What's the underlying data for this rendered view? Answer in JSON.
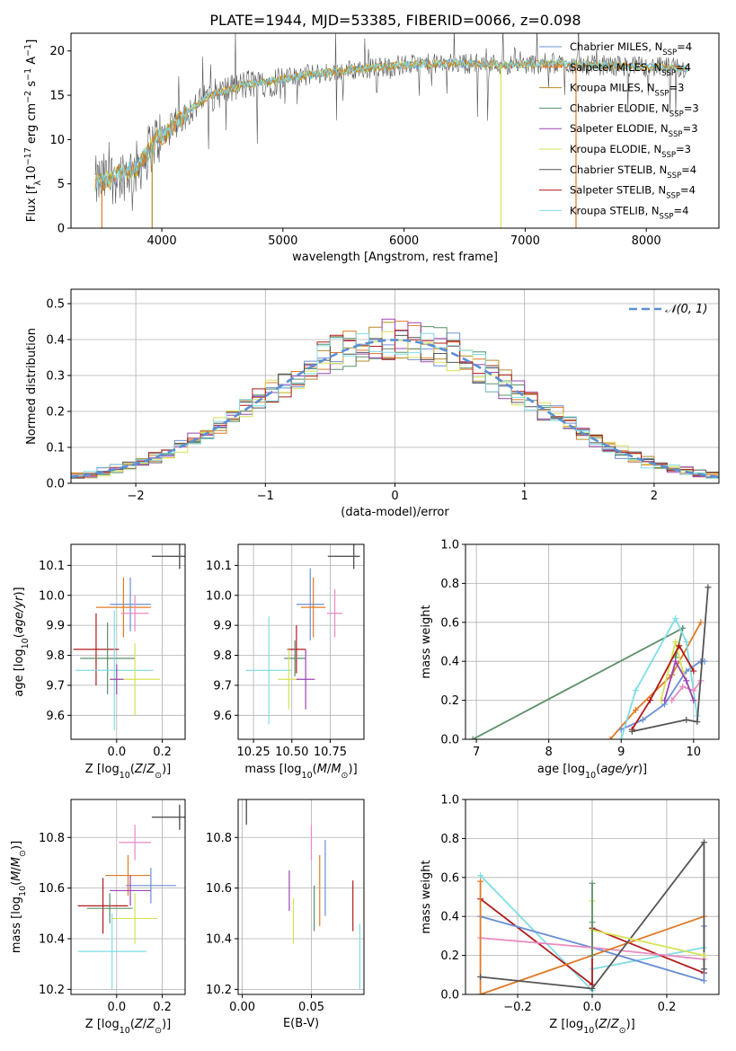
{
  "figure": {
    "title": "PLATE=1944, MJD=53385, FIBERID=0066, z=0.098"
  },
  "colors": {
    "chabrier_miles": "#6a8fd6",
    "salpeter_miles": "#e07a26",
    "kroupa_miles": "#b58a28",
    "chabrier_elodie": "#5c8f6a",
    "salpeter_elodie": "#9b45b4",
    "kroupa_elodie": "#d6e255",
    "chabrier_stelib": "#555555",
    "salpeter_stelib": "#b01a1a",
    "kroupa_stelib": "#7fdde4",
    "pink": "#e889c0",
    "gauss": "#5a8fd6"
  },
  "chart_data": [
    {
      "id": "spectrum",
      "type": "line",
      "xlabel": "wavelength [Angstrom, rest frame]",
      "ylabel": "Flux [f_λ 10^-17 erg cm^-2 s^-1 A^-1]",
      "xlim": [
        3250,
        8600
      ],
      "ylim": [
        0,
        22
      ],
      "xticks": [
        4000,
        5000,
        6000,
        7000,
        8000
      ],
      "yticks": [
        0,
        5,
        10,
        15,
        20
      ],
      "legend_position": "right",
      "series": [
        {
          "name": "Chabrier MILES, N_SSP=4",
          "label_main": "Chabrier MILES, N",
          "label_sub": "SSP",
          "label_tail": "=4",
          "color_key": "chabrier_miles"
        },
        {
          "name": "Salpeter MILES, N_SSP=4",
          "label_main": "Salpeter MILES, N",
          "label_sub": "SSP",
          "label_tail": "=4",
          "color_key": "salpeter_miles"
        },
        {
          "name": "Kroupa MILES, N_SSP=3",
          "label_main": "Kroupa MILES, N",
          "label_sub": "SSP",
          "label_tail": "=3",
          "color_key": "kroupa_miles"
        },
        {
          "name": "Chabrier ELODIE, N_SSP=3",
          "label_main": "Chabrier ELODIE, N",
          "label_sub": "SSP",
          "label_tail": "=3",
          "color_key": "chabrier_elodie"
        },
        {
          "name": "Salpeter ELODIE, N_SSP=3",
          "label_main": "Salpeter ELODIE, N",
          "label_sub": "SSP",
          "label_tail": "=3",
          "color_key": "salpeter_elodie"
        },
        {
          "name": "Kroupa ELODIE, N_SSP=3",
          "label_main": "Kroupa ELODIE, N",
          "label_sub": "SSP",
          "label_tail": "=3",
          "color_key": "kroupa_elodie"
        },
        {
          "name": "Chabrier STELIB, N_SSP=4",
          "label_main": "Chabrier STELIB, N",
          "label_sub": "SSP",
          "label_tail": "=4",
          "color_key": "chabrier_stelib"
        },
        {
          "name": "Salpeter STELIB, N_SSP=4",
          "label_main": "Salpeter STELIB, N",
          "label_sub": "SSP",
          "label_tail": "=4",
          "color_key": "salpeter_stelib"
        },
        {
          "name": "Kroupa STELIB, N_SSP=4",
          "label_main": "Kroupa STELIB, N",
          "label_sub": "SSP",
          "label_tail": "=4",
          "color_key": "kroupa_stelib"
        }
      ],
      "continuum": {
        "wavelength": [
          3450,
          3600,
          3800,
          3950,
          4050,
          4200,
          4400,
          4700,
          5000,
          5200,
          5400,
          5600,
          5800,
          6000,
          6200,
          6400,
          6600,
          6800,
          7000,
          7200,
          7400,
          7600,
          7800,
          8000,
          8200,
          8350
        ],
        "flux": [
          5.0,
          5.8,
          6.8,
          10.0,
          10.8,
          13.0,
          15.0,
          16.2,
          16.8,
          17.3,
          17.6,
          17.9,
          18.2,
          18.4,
          18.5,
          18.6,
          18.6,
          18.5,
          18.5,
          18.6,
          18.5,
          18.4,
          18.3,
          18.2,
          18.1,
          18.0
        ]
      },
      "drop_lines": [
        {
          "wavelength": 3505,
          "color_key": "salpeter_miles"
        },
        {
          "wavelength": 3920,
          "color_key": "kroupa_miles"
        },
        {
          "wavelength": 6800,
          "color_key": "kroupa_elodie"
        },
        {
          "wavelength": 7420,
          "color_key": "salpeter_miles"
        }
      ]
    },
    {
      "id": "residuals",
      "type": "line",
      "xlabel": "(data-model)/error",
      "ylabel": "Normed distribution",
      "xlim": [
        -2.5,
        2.5
      ],
      "ylim": [
        0,
        0.54
      ],
      "xticks": [
        -2,
        -1,
        0,
        1,
        2
      ],
      "yticks": [
        0.0,
        0.1,
        0.2,
        0.3,
        0.4,
        0.5
      ],
      "legend": "𝒩(0, 1)",
      "legend_position": "top-right"
    },
    {
      "id": "age_vs_Z",
      "type": "scatter",
      "xlabel": "Z [log10(Z/Z⊙)]",
      "ylabel": "age [log10(age/yr)]",
      "xlim": [
        -0.2,
        0.3
      ],
      "ylim": [
        9.52,
        10.17
      ],
      "xticks": [
        0.0,
        0.2
      ],
      "yticks": [
        9.6,
        9.7,
        9.8,
        9.9,
        10.0,
        10.1
      ],
      "points": [
        {
          "x": 0.06,
          "y": 9.97,
          "xerr": 0.09,
          "yerr": 0.09,
          "color_key": "chabrier_miles"
        },
        {
          "x": 0.03,
          "y": 9.96,
          "xerr": 0.12,
          "yerr": 0.1,
          "color_key": "salpeter_miles"
        },
        {
          "x": 0.08,
          "y": 9.94,
          "xerr": 0.06,
          "yerr": 0.06,
          "color_key": "pink"
        },
        {
          "x": -0.09,
          "y": 9.82,
          "xerr": 0.1,
          "yerr": 0.12,
          "color_key": "salpeter_stelib"
        },
        {
          "x": -0.04,
          "y": 9.79,
          "xerr": 0.12,
          "yerr": 0.12,
          "color_key": "chabrier_elodie"
        },
        {
          "x": -0.01,
          "y": 9.75,
          "xerr": 0.17,
          "yerr": 0.2,
          "color_key": "kroupa_stelib"
        },
        {
          "x": 0.08,
          "y": 9.72,
          "xerr": 0.11,
          "yerr": 0.12,
          "color_key": "kroupa_elodie"
        },
        {
          "x": 0.0,
          "y": 9.72,
          "xerr": 0.03,
          "yerr": 0.05,
          "color_key": "salpeter_elodie"
        },
        {
          "x": 0.26,
          "y": 10.13,
          "xerr": 0.0,
          "yerr": 0.0,
          "color_key": "chabrier_stelib"
        }
      ],
      "ref_error": {
        "x": 0.26,
        "y": 10.13,
        "xerr": 0.035,
        "yerr": 0.045
      }
    },
    {
      "id": "age_vs_mass",
      "type": "scatter",
      "xlabel": "mass [log10(M/M⊙)]",
      "ylabel": "",
      "xlim": [
        10.15,
        10.97
      ],
      "ylim": [
        9.52,
        10.17
      ],
      "xticks": [
        10.25,
        10.5,
        10.75
      ],
      "yticks": [
        9.6,
        9.7,
        9.8,
        9.9,
        10.0,
        10.1
      ],
      "points": [
        {
          "x": 10.62,
          "y": 9.97,
          "xerr": 0.09,
          "yerr": 0.12,
          "color_key": "chabrier_miles"
        },
        {
          "x": 10.64,
          "y": 9.96,
          "xerr": 0.08,
          "yerr": 0.1,
          "color_key": "salpeter_miles"
        },
        {
          "x": 10.78,
          "y": 9.94,
          "xerr": 0.05,
          "yerr": 0.08,
          "color_key": "pink"
        },
        {
          "x": 10.53,
          "y": 9.82,
          "xerr": 0.06,
          "yerr": 0.08,
          "color_key": "salpeter_stelib"
        },
        {
          "x": 10.52,
          "y": 9.79,
          "xerr": 0.07,
          "yerr": 0.06,
          "color_key": "chabrier_elodie"
        },
        {
          "x": 10.35,
          "y": 9.75,
          "xerr": 0.15,
          "yerr": 0.18,
          "color_key": "kroupa_stelib"
        },
        {
          "x": 10.48,
          "y": 9.72,
          "xerr": 0.07,
          "yerr": 0.1,
          "color_key": "kroupa_elodie"
        },
        {
          "x": 10.59,
          "y": 9.72,
          "xerr": 0.06,
          "yerr": 0.1,
          "color_key": "salpeter_elodie"
        }
      ],
      "ref_error": {
        "x": 10.88,
        "y": 10.13,
        "xerr": 0.04,
        "yerr": 0.045
      }
    },
    {
      "id": "weight_vs_age",
      "type": "line",
      "xlabel": "age [log10(age/yr)]",
      "ylabel": "mass weight",
      "xlim": [
        6.85,
        10.35
      ],
      "ylim": [
        0,
        1.0
      ],
      "xticks": [
        7,
        8,
        9,
        10
      ],
      "yticks": [
        0.0,
        0.2,
        0.4,
        0.6,
        0.8,
        1.0
      ],
      "series": [
        {
          "color_key": "chabrier_elodie",
          "x": [
            6.95,
            9.85,
            9.75
          ],
          "y": [
            0.0,
            0.57,
            0.42
          ]
        },
        {
          "color_key": "salpeter_miles",
          "x": [
            8.85,
            9.2,
            9.7,
            10.1
          ],
          "y": [
            0.0,
            0.15,
            0.33,
            0.6
          ]
        },
        {
          "color_key": "chabrier_miles",
          "x": [
            9.0,
            9.3,
            9.6,
            9.9,
            10.1,
            10.15
          ],
          "y": [
            0.05,
            0.1,
            0.18,
            0.35,
            0.4,
            0.4
          ]
        },
        {
          "color_key": "kroupa_stelib",
          "x": [
            9.0,
            9.2,
            9.75,
            9.9,
            10.05
          ],
          "y": [
            0.0,
            0.25,
            0.62,
            0.5,
            0.12
          ]
        },
        {
          "color_key": "kroupa_elodie",
          "x": [
            9.55,
            9.75,
            9.85,
            10.0
          ],
          "y": [
            0.2,
            0.5,
            0.35,
            0.2
          ]
        },
        {
          "color_key": "pink",
          "x": [
            9.7,
            9.85,
            10.0,
            10.1
          ],
          "y": [
            0.2,
            0.27,
            0.25,
            0.3
          ]
        },
        {
          "color_key": "salpeter_elodie",
          "x": [
            9.6,
            9.75,
            9.9,
            10.0
          ],
          "y": [
            0.2,
            0.4,
            0.3,
            0.2
          ]
        },
        {
          "color_key": "salpeter_stelib",
          "x": [
            9.15,
            9.4,
            9.8,
            10.0
          ],
          "y": [
            0.05,
            0.2,
            0.48,
            0.35
          ]
        },
        {
          "color_key": "chabrier_stelib",
          "x": [
            9.15,
            9.9,
            10.05,
            10.2
          ],
          "y": [
            0.04,
            0.1,
            0.09,
            0.78
          ]
        }
      ]
    },
    {
      "id": "mass_vs_Z",
      "type": "scatter",
      "xlabel": "Z [log10(Z/Z⊙)]",
      "ylabel": "mass [log10(M/M⊙)]",
      "xlim": [
        -0.2,
        0.3
      ],
      "ylim": [
        10.18,
        10.95
      ],
      "xticks": [
        0.0,
        0.2
      ],
      "yticks": [
        10.2,
        10.4,
        10.6,
        10.8
      ],
      "points": [
        {
          "x": 0.08,
          "y": 10.78,
          "xerr": 0.07,
          "yerr": 0.07,
          "color_key": "pink"
        },
        {
          "x": 0.05,
          "y": 10.65,
          "xerr": 0.1,
          "yerr": 0.08,
          "color_key": "salpeter_miles"
        },
        {
          "x": 0.15,
          "y": 10.61,
          "xerr": 0.11,
          "yerr": 0.07,
          "color_key": "chabrier_miles"
        },
        {
          "x": 0.06,
          "y": 10.59,
          "xerr": 0.09,
          "yerr": 0.06,
          "color_key": "salpeter_elodie"
        },
        {
          "x": -0.06,
          "y": 10.53,
          "xerr": 0.11,
          "yerr": 0.11,
          "color_key": "salpeter_stelib"
        },
        {
          "x": -0.03,
          "y": 10.52,
          "xerr": 0.1,
          "yerr": 0.06,
          "color_key": "chabrier_elodie"
        },
        {
          "x": 0.08,
          "y": 10.48,
          "xerr": 0.1,
          "yerr": 0.1,
          "color_key": "kroupa_elodie"
        },
        {
          "x": -0.02,
          "y": 10.35,
          "xerr": 0.15,
          "yerr": 0.15,
          "color_key": "kroupa_stelib"
        }
      ],
      "ref_error": {
        "x": 0.26,
        "y": 10.88,
        "xerr": 0.035,
        "yerr": 0.035
      }
    },
    {
      "id": "mass_vs_ebv",
      "type": "scatter",
      "xlabel": "E(B-V)",
      "ylabel": "",
      "xlim": [
        -0.003,
        0.088
      ],
      "ylim": [
        10.18,
        10.95
      ],
      "xticks": [
        0.0,
        0.05
      ],
      "yticks": [
        10.2,
        10.4,
        10.6,
        10.8
      ],
      "points": [
        {
          "x": 0.05,
          "y": 10.78,
          "xerr": 0,
          "yerr": 0.07,
          "color_key": "pink"
        },
        {
          "x": 0.06,
          "y": 10.64,
          "xerr": 0,
          "yerr": 0.15,
          "color_key": "chabrier_miles"
        },
        {
          "x": 0.056,
          "y": 10.59,
          "xerr": 0,
          "yerr": 0.14,
          "color_key": "salpeter_miles"
        },
        {
          "x": 0.034,
          "y": 10.59,
          "xerr": 0,
          "yerr": 0.08,
          "color_key": "salpeter_elodie"
        },
        {
          "x": 0.052,
          "y": 10.52,
          "xerr": 0,
          "yerr": 0.09,
          "color_key": "chabrier_elodie"
        },
        {
          "x": 0.037,
          "y": 10.47,
          "xerr": 0,
          "yerr": 0.09,
          "color_key": "kroupa_elodie"
        },
        {
          "x": 0.08,
          "y": 10.53,
          "xerr": 0,
          "yerr": 0.1,
          "color_key": "salpeter_stelib"
        },
        {
          "x": 0.085,
          "y": 10.33,
          "xerr": 0,
          "yerr": 0.13,
          "color_key": "kroupa_stelib"
        }
      ],
      "ref_error": {
        "x": 0.003,
        "y": 10.9,
        "xerr": 0,
        "yerr": 0.03
      }
    },
    {
      "id": "weight_vs_Z",
      "type": "line",
      "xlabel": "Z [log10(Z/Z⊙)]",
      "ylabel": "mass weight",
      "xlim": [
        -0.34,
        0.34
      ],
      "ylim": [
        0,
        1.0
      ],
      "xticks": [
        -0.2,
        0.0,
        0.2
      ],
      "yticks": [
        0.0,
        0.2,
        0.4,
        0.6,
        0.8,
        1.0
      ],
      "series": [
        {
          "color_key": "kroupa_stelib",
          "x": [
            -0.3,
            0.0,
            0.0,
            0.3
          ],
          "y": [
            0.61,
            0.02,
            0.13,
            0.24
          ]
        },
        {
          "color_key": "salpeter_stelib",
          "x": [
            -0.3,
            0.0,
            0.0,
            0.3
          ],
          "y": [
            0.49,
            0.05,
            0.34,
            0.11
          ]
        },
        {
          "color_key": "chabrier_miles",
          "x": [
            -0.3,
            0.0,
            0.3,
            0.3
          ],
          "y": [
            0.4,
            0.24,
            0.07,
            0.35
          ]
        },
        {
          "color_key": "pink",
          "x": [
            -0.3,
            0.0,
            0.3
          ],
          "y": [
            0.29,
            0.24,
            0.18
          ]
        },
        {
          "color_key": "salpeter_miles",
          "x": [
            -0.3,
            -0.3,
            0.3
          ],
          "y": [
            0.58,
            0.0,
            0.4
          ]
        },
        {
          "color_key": "chabrier_stelib",
          "x": [
            -0.3,
            0.0,
            0.3,
            0.3
          ],
          "y": [
            0.09,
            0.03,
            0.78,
            0.13
          ]
        },
        {
          "color_key": "kroupa_elodie",
          "x": [
            0.0,
            0.0,
            0.3
          ],
          "y": [
            0.48,
            0.33,
            0.2
          ]
        },
        {
          "color_key": "chabrier_elodie",
          "x": [
            0.0,
            0.0,
            0.0
          ],
          "y": [
            0.57,
            0.37,
            0.2
          ]
        }
      ]
    }
  ]
}
